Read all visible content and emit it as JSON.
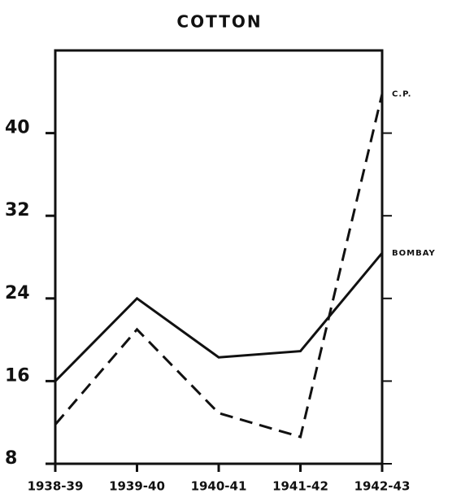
{
  "chart_data": {
    "type": "line",
    "title": "COTTON",
    "categories": [
      "1938-39",
      "1939-40",
      "1940-41",
      "1941-42",
      "1942-43"
    ],
    "series": [
      {
        "name": "BOMBAY",
        "color": "#111111",
        "dash": false,
        "values": [
          16,
          24,
          18.3,
          18.9,
          28.4
        ]
      },
      {
        "name": "C.P.",
        "color": "#111111",
        "dash": true,
        "values": [
          11.8,
          21,
          12.9,
          10.6,
          43.8
        ]
      }
    ],
    "ylim": [
      8,
      48
    ],
    "yticks": [
      8,
      16,
      24,
      32,
      40
    ],
    "grid": false
  }
}
